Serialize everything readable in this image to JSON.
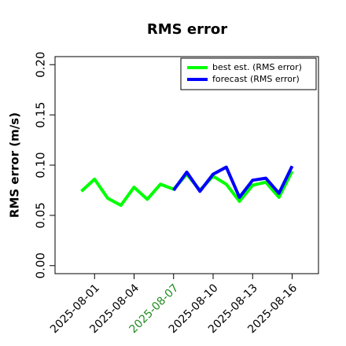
{
  "chart_data": {
    "type": "line",
    "title": "RMS error",
    "y_label": "RMS error (m/s)",
    "x": [
      "2025-07-31",
      "2025-08-01",
      "2025-08-02",
      "2025-08-03",
      "2025-08-04",
      "2025-08-05",
      "2025-08-06",
      "2025-08-07",
      "2025-08-08",
      "2025-08-09",
      "2025-08-10",
      "2025-08-11",
      "2025-08-12",
      "2025-08-13",
      "2025-08-14",
      "2025-08-15",
      "2025-08-16"
    ],
    "series": [
      {
        "name": "best est. (RMS error)",
        "color": "#00ff00",
        "values": [
          0.074,
          0.086,
          0.067,
          0.06,
          0.078,
          0.066,
          0.081,
          0.076,
          0.091,
          0.075,
          0.089,
          0.081,
          0.064,
          0.08,
          0.083,
          0.068,
          0.094
        ]
      },
      {
        "name": "forecast (RMS error)",
        "color": "#0000ff",
        "values": [
          null,
          null,
          null,
          null,
          null,
          null,
          null,
          0.075,
          0.093,
          0.074,
          0.091,
          0.098,
          0.068,
          0.085,
          0.087,
          0.072,
          0.099
        ]
      }
    ],
    "xlim": [
      "2025-07-29",
      "2025-08-18"
    ],
    "xticks": [
      "2025-08-01",
      "2025-08-04",
      "2025-08-07",
      "2025-08-10",
      "2025-08-13",
      "2025-08-16"
    ],
    "highlight_xtick": 2,
    "highlight_color": "#228b22",
    "ylim": [
      -0.008,
      0.208
    ],
    "yticks": [
      {
        "value": 0,
        "label": "0.00"
      },
      {
        "value": 0.05,
        "label": "0.05"
      },
      {
        "value": 0.1,
        "label": "0.10"
      },
      {
        "value": 0.15,
        "label": "0.15"
      },
      {
        "value": 0.2,
        "label": "0.20"
      }
    ],
    "legend": "top-right"
  }
}
